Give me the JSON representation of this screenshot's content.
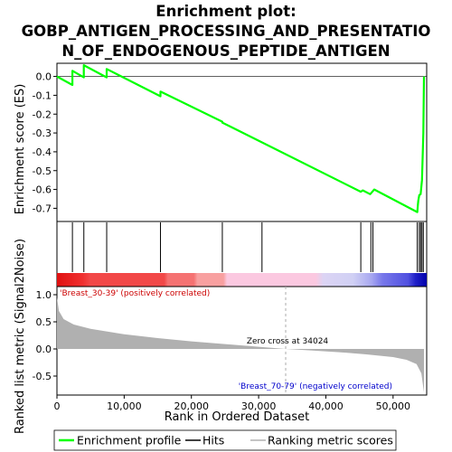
{
  "title_lines": [
    "Enrichment plot:",
    "GOBP_ANTIGEN_PROCESSING_AND_PRESENTATIO",
    "N_OF_ENDOGENOUS_PEPTIDE_ANTIGEN"
  ],
  "colors": {
    "es_curve": "#00ff00",
    "hits": "#000000",
    "metric_fill": "#b0b0b0",
    "pos_label": "#cc0000",
    "neg_label": "#0000cc",
    "zero_cross_line": "#aaaaaa",
    "grid": "#000000"
  },
  "chart_data": [
    {
      "type": "line",
      "name": "enrichment-profile",
      "ylabel": "Enrichment score (ES)",
      "xlim": [
        0,
        55000
      ],
      "ylim": [
        -0.77,
        0.07
      ],
      "yticks": [
        0.0,
        -0.1,
        -0.2,
        -0.3,
        -0.4,
        -0.5,
        -0.6,
        -0.7
      ],
      "ytick_labels": [
        "0.0",
        "-0.1",
        "-0.2",
        "-0.3",
        "-0.4",
        "-0.5",
        "-0.6",
        "-0.7"
      ],
      "x": [
        0,
        2300,
        2300,
        4000,
        4000,
        7400,
        7400,
        15400,
        15400,
        24600,
        24600,
        30500,
        45200,
        45500,
        46600,
        47200,
        53600,
        53700,
        53750,
        53900,
        54100,
        54300,
        54500,
        54600
      ],
      "y": [
        0.0,
        -0.045,
        0.03,
        -0.005,
        0.06,
        -0.005,
        0.04,
        -0.105,
        -0.08,
        -0.24,
        -0.245,
        -0.35,
        -0.612,
        -0.605,
        -0.625,
        -0.6,
        -0.72,
        -0.68,
        -0.66,
        -0.63,
        -0.625,
        -0.55,
        -0.3,
        0.0
      ]
    },
    {
      "type": "scatter",
      "name": "hits",
      "x": [
        2300,
        4000,
        7400,
        15400,
        24600,
        30500,
        45200,
        46700,
        47000,
        53600,
        53900,
        54100,
        54300,
        54500
      ]
    },
    {
      "type": "area",
      "name": "ranked-list-metric",
      "ylabel": "Ranked list metric (Signal2Noise)",
      "xlabel": "Rank in Ordered Dataset",
      "xlim": [
        0,
        55000
      ],
      "ylim": [
        -0.85,
        1.15
      ],
      "xticks": [
        0,
        10000,
        20000,
        30000,
        40000,
        50000
      ],
      "xtick_labels": [
        "0",
        "10,000",
        "20,000",
        "30,000",
        "40,000",
        "50,000"
      ],
      "yticks": [
        1.0,
        0.5,
        0.0,
        -0.5
      ],
      "ytick_labels": [
        "1.0",
        "0.5",
        "0.0",
        "-0.5"
      ],
      "x": [
        0,
        300,
        1000,
        2500,
        5000,
        10000,
        15000,
        20000,
        25000,
        30000,
        34024,
        38000,
        42000,
        46000,
        50000,
        52000,
        53500,
        54200,
        54600
      ],
      "y": [
        0.95,
        0.7,
        0.55,
        0.45,
        0.37,
        0.27,
        0.2,
        0.14,
        0.09,
        0.04,
        0.0,
        -0.03,
        -0.06,
        -0.1,
        -0.15,
        -0.2,
        -0.28,
        -0.45,
        -0.8
      ]
    }
  ],
  "annotations": {
    "pos_label": "'Breast_30-39' (positively correlated)",
    "neg_label": "'Breast_70-79' (negatively correlated)",
    "zero_cross": "Zero cross at 34024",
    "zero_cross_x": 34024
  },
  "legend": {
    "items": [
      {
        "label": "Enrichment profile",
        "swatch": "line-green"
      },
      {
        "label": "Hits",
        "swatch": "line-black"
      },
      {
        "label": "Ranking metric scores",
        "swatch": "line-grey"
      }
    ]
  }
}
